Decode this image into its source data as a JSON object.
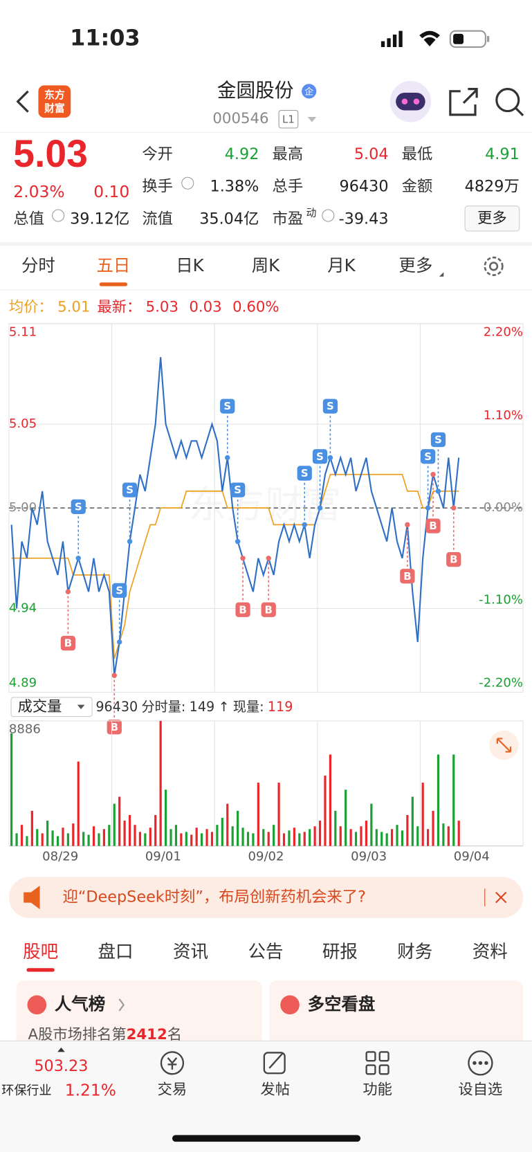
{
  "status_bar": {
    "time": "11:03"
  },
  "header": {
    "logo_lines": [
      "东方",
      "财富"
    ],
    "title": "金圆股份",
    "badge": "企",
    "code": "000546",
    "level": "L1"
  },
  "quote": {
    "price": "5.03",
    "change_pct": "2.03%",
    "change": "0.10",
    "total_value_label": "总值",
    "total_value": "39.12亿",
    "more": "更多",
    "rows": [
      [
        {
          "label": "今开",
          "value": "4.92",
          "color": "#1aa033"
        },
        {
          "label": "最高",
          "value": "5.04",
          "color": "#e8262b"
        },
        {
          "label": "最低",
          "value": "4.91",
          "color": "#1aa033"
        }
      ],
      [
        {
          "label": "换手",
          "value": "1.38%",
          "info": true
        },
        {
          "label": "总手",
          "value": "96430"
        },
        {
          "label": "金额",
          "value": "4829万"
        }
      ],
      [
        {
          "label": "流值",
          "value": "35.04亿"
        },
        {
          "label": "市盈",
          "sup": "动",
          "value": "-39.43",
          "info": true
        }
      ]
    ]
  },
  "tabs": {
    "items": [
      "分时",
      "五日",
      "日K",
      "周K",
      "月K",
      "更多"
    ],
    "active": 1
  },
  "chart_data": [
    {
      "type": "line",
      "watermark": "东方财富",
      "legend": {
        "avg_label": "均价：",
        "avg": 5.01,
        "last_label": "最新：",
        "last": 5.03,
        "change": 0.03,
        "change_pct": "0.60%"
      },
      "xlim": [
        0,
        100
      ],
      "xgrid": [
        20,
        40,
        60,
        80
      ],
      "ylim": [
        4.89,
        5.11
      ],
      "yticks": [
        5.11,
        5.05,
        {
          "value": 5,
          "label": "5.00"
        },
        4.94,
        4.89
      ],
      "reference": 5,
      "y2lim": [
        -2.2,
        2.2
      ],
      "y2ticks": [
        {
          "value": 2.2,
          "label": "2.20%"
        },
        {
          "value": 1.1,
          "label": "1.10%"
        },
        {
          "value": 0,
          "label": "0.00%"
        },
        {
          "value": -1.1,
          "label": "-1.10%"
        },
        {
          "value": -2.2,
          "label": "-2.20%"
        }
      ],
      "up_color": "#e8262b",
      "down_color": "#1aa033",
      "flat_color": "#888888",
      "series": [
        {
          "color": "#f0a020",
          "values": [
            4.97,
            4.97,
            4.97,
            4.97,
            4.97,
            4.97,
            4.97,
            4.97,
            4.97,
            4.97,
            4.97,
            4.97,
            4.96,
            4.96,
            4.96,
            4.96,
            4.96,
            4.96,
            4.96,
            4.96,
            4.91,
            4.92,
            4.93,
            4.95,
            4.96,
            4.97,
            4.98,
            4.99,
            4.99,
            5.0,
            5.0,
            5.0,
            5.0,
            5.0,
            5.01,
            5.01,
            5.01,
            5.01,
            5.01,
            5.01,
            5.01,
            5.01,
            5.0,
            5.0,
            5.0,
            5.0,
            5.0,
            5.0,
            5.0,
            5.0,
            5.0,
            4.99,
            4.99,
            4.99,
            4.99,
            4.99,
            4.99,
            4.99,
            4.99,
            4.99,
            5.0,
            5.01,
            5.02,
            5.02,
            5.02,
            5.02,
            5.02,
            5.02,
            5.02,
            5.02,
            5.02,
            5.02,
            5.02,
            5.02,
            5.02,
            5.02,
            5.02,
            5.01,
            5.01,
            5.01,
            5.0,
            5.0,
            5.01,
            5.01,
            5.01,
            5.01,
            5.01,
            5.01
          ]
        },
        {
          "color": "#2f6fc6",
          "values": [
            4.99,
            4.94,
            4.98,
            4.97,
            5.0,
            4.99,
            5.01,
            4.98,
            4.97,
            4.96,
            4.98,
            4.95,
            4.96,
            4.97,
            4.96,
            4.95,
            4.97,
            4.95,
            4.96,
            4.95,
            4.9,
            4.92,
            4.95,
            4.98,
            5.0,
            5.02,
            5.01,
            5.03,
            5.05,
            5.09,
            5.05,
            5.04,
            5.03,
            5.04,
            5.03,
            5.04,
            5.04,
            5.03,
            5.04,
            5.05,
            5.04,
            5.01,
            5.03,
            5.0,
            4.98,
            4.97,
            4.96,
            4.95,
            4.97,
            4.96,
            4.97,
            4.96,
            4.98,
            4.99,
            4.98,
            4.99,
            4.98,
            4.99,
            4.97,
            4.99,
            5.0,
            5.02,
            5.03,
            5.02,
            5.03,
            5.02,
            5.03,
            5.01,
            5.02,
            5.03,
            5.01,
            5.0,
            4.99,
            4.98,
            5.0,
            4.98,
            4.97,
            4.99,
            4.95,
            4.92,
            4.97,
            5.0,
            5.02,
            5.01,
            5.0,
            5.03,
            5.0,
            5.03
          ]
        }
      ],
      "markers": [
        {
          "label": "S",
          "index": 13
        },
        {
          "label": "S",
          "index": 21
        },
        {
          "label": "S",
          "index": 23
        },
        {
          "label": "S",
          "index": 42
        },
        {
          "label": "S",
          "index": 44
        },
        {
          "label": "S",
          "index": 57
        },
        {
          "label": "S",
          "index": 60
        },
        {
          "label": "S",
          "index": 62
        },
        {
          "label": "S",
          "index": 81
        },
        {
          "label": "S",
          "index": 83
        },
        {
          "label": "B",
          "index": 11
        },
        {
          "label": "B",
          "index": 20
        },
        {
          "label": "B",
          "index": 45
        },
        {
          "label": "B",
          "index": 50
        },
        {
          "label": "B",
          "index": 77
        },
        {
          "label": "B",
          "index": 82
        },
        {
          "label": "B",
          "index": 86
        }
      ]
    },
    {
      "type": "bar",
      "header": {
        "label": "成交量",
        "total": 96430,
        "tick_label": "分时量:",
        "tick": 149,
        "arrow": "↑",
        "now_label": "现量:",
        "now": 119
      },
      "xlim": [
        0,
        100
      ],
      "xticks": [
        {
          "value": 10,
          "label": "08/29"
        },
        {
          "value": 30,
          "label": "09/01"
        },
        {
          "value": 50,
          "label": "09/02"
        },
        {
          "value": 70,
          "label": "09/03"
        },
        {
          "value": 90,
          "label": "09/04"
        }
      ],
      "ylim": [
        0,
        8886
      ],
      "yticks": [
        8886
      ],
      "values": [
        8000,
        900,
        1500,
        700,
        2500,
        1200,
        900,
        1800,
        1100,
        700,
        1300,
        900,
        1600,
        6000,
        1000,
        800,
        1400,
        900,
        1200,
        1500,
        3000,
        3500,
        1800,
        2200,
        1500,
        1000,
        900,
        1300,
        2200,
        8886,
        4000,
        1200,
        1500,
        900,
        1000,
        800,
        1300,
        900,
        1200,
        1000,
        1500,
        2000,
        3000,
        1400,
        2500,
        1300,
        1000,
        900,
        4500,
        1200,
        1000,
        1500,
        4500,
        900,
        1100,
        1300,
        900,
        1000,
        1200,
        1400,
        1800,
        5000,
        6500,
        2500,
        1400,
        4000,
        1200,
        1000,
        1400,
        1800,
        3000,
        1200,
        1000,
        900,
        1200,
        1500,
        1100,
        2200,
        3500,
        1400,
        4500,
        1200,
        2500,
        6500,
        1600,
        1400,
        6500,
        1800
      ]
    }
  ],
  "banner": {
    "text": "迎“DeepSeek时刻”，布局创新药机会来了?"
  },
  "section_tabs": {
    "items": [
      "股吧",
      "盘口",
      "资讯",
      "公告",
      "研报",
      "财务",
      "资料"
    ],
    "active": 0
  },
  "cards": [
    {
      "title": "人气榜",
      "line_prefix": "A股市场排名第",
      "rank": "2412",
      "line_suffix": "名"
    },
    {
      "title": "多空看盘"
    }
  ],
  "bottom_bar": {
    "index_value": "503.23",
    "index_name": "环保行业",
    "index_change": "1.21%",
    "items": [
      "交易",
      "发帖",
      "功能",
      "设自选"
    ]
  }
}
